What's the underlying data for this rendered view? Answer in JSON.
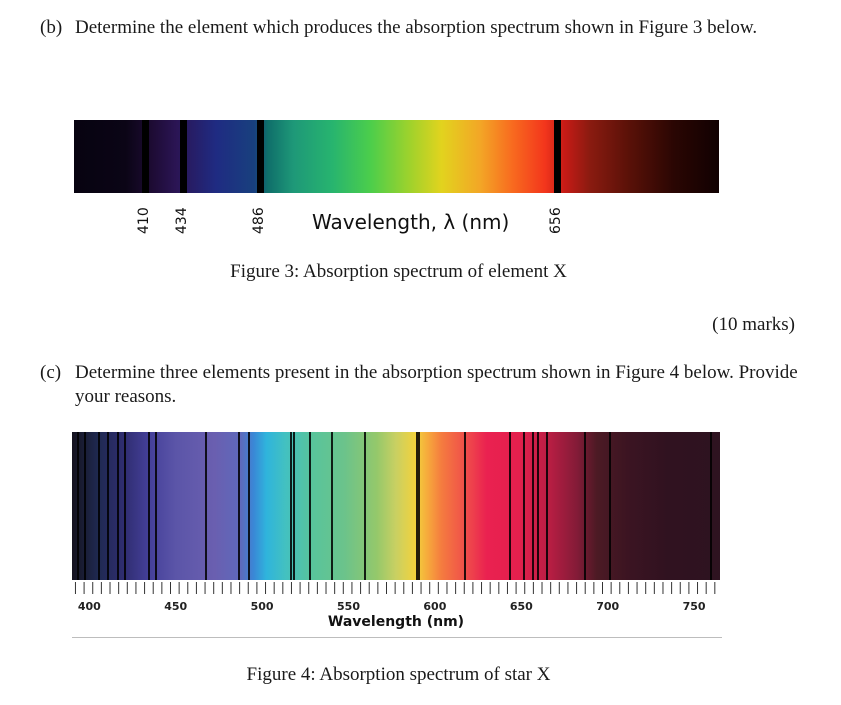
{
  "question_b": {
    "label": "(b)",
    "text": "Determine the element which produces the absorption spectrum shown in Figure 3 below."
  },
  "figure3": {
    "caption": "Figure 3: Absorption spectrum of element X",
    "axis_label": "Wavelength, λ (nm)",
    "line_labels": [
      "410",
      "434",
      "486",
      "656"
    ]
  },
  "marks": "(10 marks)",
  "question_c": {
    "label": "(c)",
    "text": "Determine three elements present in the absorption spectrum shown in Figure 4 below. Provide your reasons."
  },
  "figure4": {
    "caption": "Figure 4: Absorption spectrum of star X",
    "axis_label": "Wavelength (nm)",
    "tick_labels": [
      "400",
      "450",
      "500",
      "550",
      "600",
      "650",
      "700",
      "750"
    ]
  },
  "chart_data": [
    {
      "type": "spectrum",
      "xlabel": "Wavelength, λ (nm)",
      "absorption_lines": [
        410,
        434,
        486,
        656
      ]
    },
    {
      "type": "spectrum",
      "xlabel": "Wavelength (nm)",
      "xlim": [
        390,
        765
      ],
      "ticks": [
        400,
        450,
        500,
        550,
        600,
        650,
        700,
        750
      ],
      "absorption_lines": [
        393,
        397,
        405,
        410,
        416,
        420,
        434,
        438,
        467,
        486,
        492,
        516,
        518,
        527,
        540,
        559,
        589,
        590,
        617,
        643,
        651,
        656,
        659,
        664,
        686,
        701,
        759
      ]
    }
  ]
}
